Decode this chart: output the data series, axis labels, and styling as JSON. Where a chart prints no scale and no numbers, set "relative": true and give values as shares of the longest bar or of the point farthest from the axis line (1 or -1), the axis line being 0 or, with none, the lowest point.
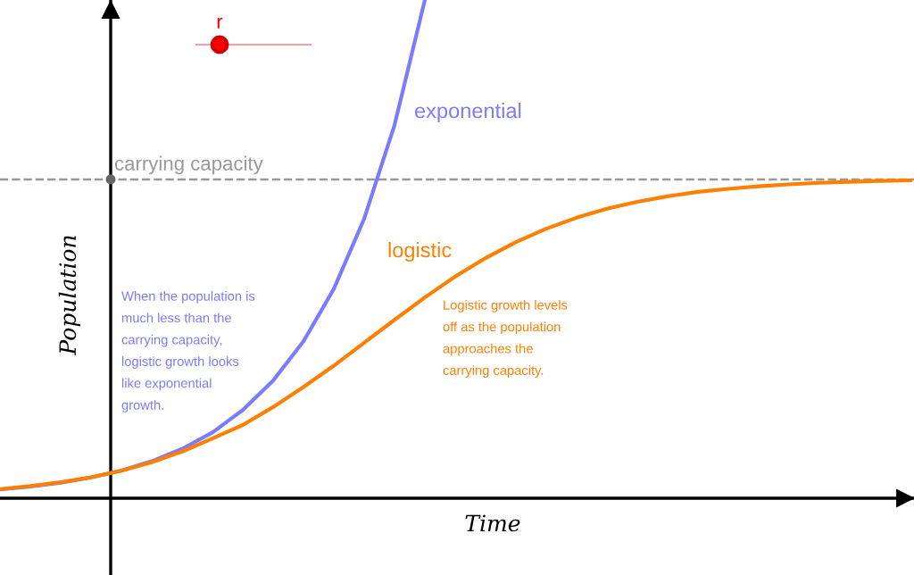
{
  "chart_data": {
    "type": "line",
    "relative": true,
    "xlabel": "Time",
    "ylabel": "Population",
    "categories": [
      null,
      null,
      null,
      null,
      null,
      null,
      null,
      null,
      null,
      null,
      null,
      null,
      null,
      null,
      null,
      null,
      null,
      null,
      null,
      null,
      null,
      null,
      null,
      null,
      null,
      null,
      null,
      null,
      null,
      null,
      null
    ],
    "series": [
      {
        "name": "exponential",
        "color": "#7b7bff",
        "values": [
          0.0175,
          0.0233,
          0.0312,
          0.0416,
          0.0556,
          0.0742,
          0.099,
          0.132,
          0.177,
          0.236,
          0.315,
          0.42,
          0.561,
          0.749,
          1.0,
          null,
          null,
          null,
          null,
          null,
          null,
          null,
          null,
          null,
          null,
          null,
          null,
          null,
          null,
          null,
          null
        ]
      },
      {
        "name": "logistic",
        "color": "#ff7f00",
        "values": [
          0.0184,
          0.0244,
          0.0321,
          0.0421,
          0.055,
          0.072,
          0.0937,
          0.12,
          0.147,
          0.183,
          0.223,
          0.266,
          0.312,
          0.358,
          0.403,
          0.445,
          0.482,
          0.514,
          0.541,
          0.563,
          0.581,
          0.595,
          0.606,
          0.615,
          0.621,
          0.626,
          0.63,
          0.633,
          0.635,
          0.637,
          0.638
        ]
      }
    ],
    "ref_lines": [
      {
        "axis": "y",
        "value": 0.64,
        "label": "carrying capacity",
        "color": "#999999",
        "line_style": "dashed"
      }
    ],
    "annotations": [
      "When the population is\nmuch less than the\ncarrying capacity,\nlogistic growth looks\nlike exponential\ngrowth.",
      "Logistic growth levels\noff as the population\napproaches the\ncarrying capacity.",
      "r"
    ],
    "legend": false,
    "marker": "none",
    "line_style": "solid"
  }
}
